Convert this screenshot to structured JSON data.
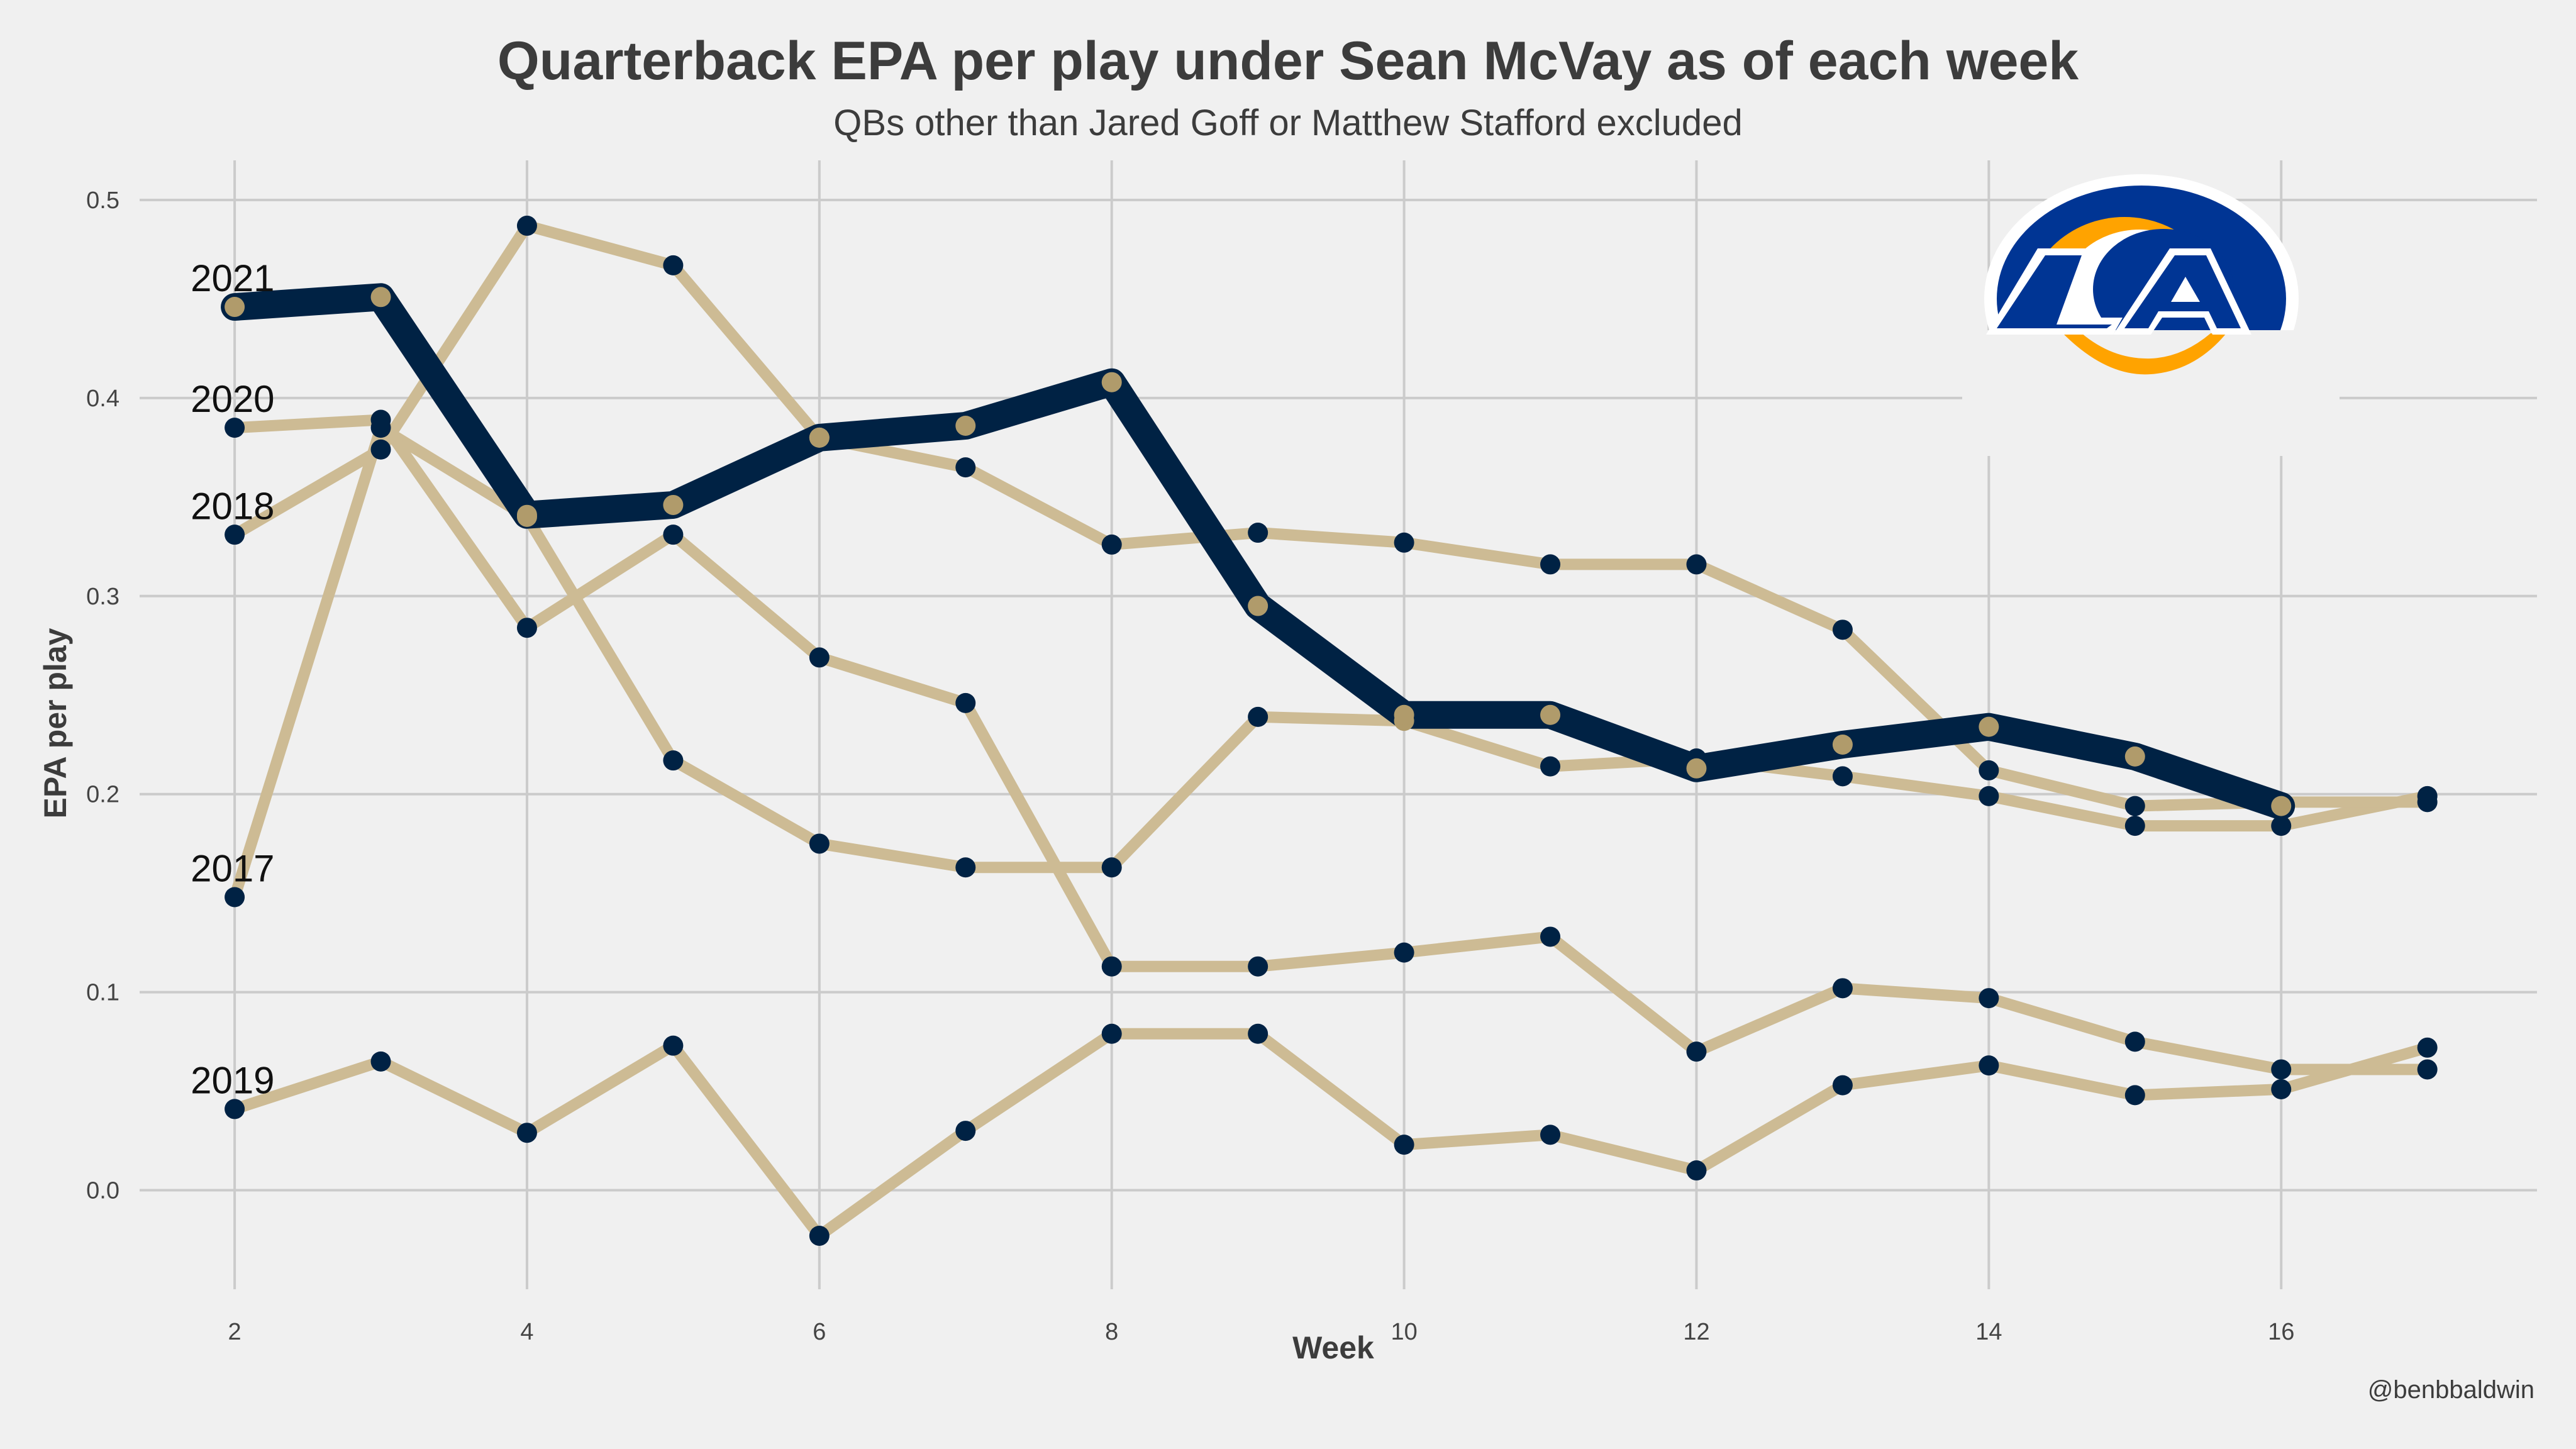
{
  "title": "Quarterback EPA per play under Sean McVay as of each week",
  "subtitle": "QBs other than Jared Goff or Matthew Stafford excluded",
  "caption": "@benbbaldwin",
  "logo": {
    "name": "la-rams-logo",
    "text": "LA"
  },
  "colors": {
    "background": "#f0f0f0",
    "grid": "#cbcbcb",
    "highlight_line": "#002244",
    "muted_line": "#cdbb94",
    "navy_point": "#002244",
    "gold_point": "#b09b6b",
    "logo_blue": "#003594",
    "logo_gold": "#ffa300"
  },
  "chart_data": {
    "type": "line",
    "title": "Quarterback EPA per play under Sean McVay as of each week",
    "subtitle": "QBs other than Jared Goff or Matthew Stafford excluded",
    "xlabel": "Week",
    "ylabel": "EPA per play",
    "xlim": [
      1.35,
      17.75
    ],
    "ylim": [
      -0.05,
      0.52
    ],
    "xticks": [
      2,
      4,
      6,
      8,
      10,
      12,
      14,
      16
    ],
    "yticks": [
      0.0,
      0.1,
      0.2,
      0.3,
      0.4,
      0.5
    ],
    "ytick_labels": [
      "0.0",
      "0.1",
      "0.2",
      "0.3",
      "0.4",
      "0.5"
    ],
    "grid": true,
    "highlight": "2021",
    "series": [
      {
        "name": "2017",
        "x": [
          2,
          3,
          4,
          5,
          6,
          7,
          8,
          9,
          10,
          11,
          12,
          13,
          14,
          15,
          16,
          17
        ],
        "values": [
          0.148,
          0.385,
          0.34,
          0.217,
          0.175,
          0.163,
          0.163,
          0.239,
          0.237,
          0.214,
          0.218,
          0.209,
          0.199,
          0.184,
          0.184,
          0.199
        ],
        "marker_colors": [
          "navy",
          "navy",
          "gold",
          "navy",
          "navy",
          "navy",
          "navy",
          "navy",
          "gold",
          "navy",
          "navy",
          "navy",
          "navy",
          "navy",
          "navy",
          "navy"
        ]
      },
      {
        "name": "2018",
        "x": [
          2,
          3,
          4,
          5,
          6,
          7,
          8,
          9,
          10,
          11,
          12,
          13,
          14,
          15,
          16,
          17
        ],
        "values": [
          0.331,
          0.374,
          0.487,
          0.467,
          0.38,
          0.365,
          0.326,
          0.332,
          0.327,
          0.316,
          0.316,
          0.283,
          0.212,
          0.194,
          0.196,
          0.196
        ],
        "marker_colors": [
          "navy",
          "navy",
          "navy",
          "navy",
          "gold",
          "navy",
          "navy",
          "navy",
          "navy",
          "navy",
          "navy",
          "navy",
          "navy",
          "navy",
          "navy",
          "navy"
        ]
      },
      {
        "name": "2019",
        "x": [
          2,
          3,
          4,
          5,
          6,
          7,
          8,
          9,
          10,
          11,
          12,
          13,
          14,
          15,
          16,
          17
        ],
        "values": [
          0.041,
          0.065,
          0.029,
          0.073,
          -0.023,
          0.03,
          0.079,
          0.079,
          0.023,
          0.028,
          0.01,
          0.053,
          0.063,
          0.048,
          0.051,
          0.072
        ],
        "marker_colors": [
          "navy",
          "navy",
          "navy",
          "navy",
          "navy",
          "navy",
          "navy",
          "navy",
          "navy",
          "navy",
          "navy",
          "navy",
          "navy",
          "navy",
          "navy",
          "navy"
        ]
      },
      {
        "name": "2020",
        "x": [
          2,
          3,
          4,
          5,
          6,
          7,
          8,
          9,
          10,
          11,
          12,
          13,
          14,
          15,
          16,
          17
        ],
        "values": [
          0.385,
          0.389,
          0.284,
          0.331,
          0.269,
          0.246,
          0.113,
          0.113,
          0.12,
          0.128,
          0.07,
          0.102,
          0.097,
          0.075,
          0.061,
          0.061
        ],
        "marker_colors": [
          "navy",
          "navy",
          "navy",
          "navy",
          "navy",
          "navy",
          "navy",
          "navy",
          "navy",
          "navy",
          "navy",
          "navy",
          "navy",
          "navy",
          "navy",
          "navy"
        ]
      },
      {
        "name": "2021",
        "x": [
          2,
          3,
          4,
          5,
          6,
          7,
          8,
          9,
          10,
          11,
          12,
          13,
          14,
          15,
          16
        ],
        "values": [
          0.446,
          0.451,
          0.341,
          0.346,
          0.38,
          0.386,
          0.408,
          0.295,
          0.24,
          0.24,
          0.213,
          0.225,
          0.234,
          0.219,
          0.194
        ],
        "marker_colors": [
          "gold",
          "gold",
          "gold",
          "gold",
          "gold",
          "gold",
          "gold",
          "gold",
          "gold",
          "gold",
          "gold",
          "gold",
          "gold",
          "gold",
          "gold"
        ]
      }
    ],
    "year_labels": [
      {
        "text": "2021",
        "x": 2,
        "y": 0.452
      },
      {
        "text": "2020",
        "x": 2,
        "y": 0.391
      },
      {
        "text": "2018",
        "x": 2,
        "y": 0.337
      },
      {
        "text": "2017",
        "x": 2,
        "y": 0.154
      },
      {
        "text": "2019",
        "x": 2,
        "y": 0.047
      }
    ]
  }
}
